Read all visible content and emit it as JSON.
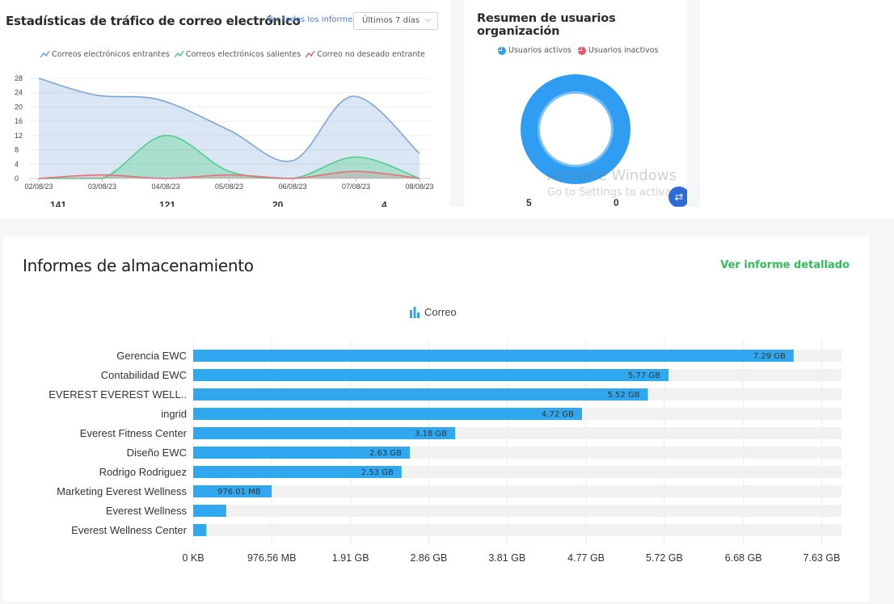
{
  "traffic": {
    "title": "Estadísticas de tráfico de correo electrónico",
    "view_all": "Ver todos los informes",
    "period": "Últimos 7 días",
    "legend": [
      {
        "label": "Correos electrónicos entrantes",
        "color": "#7aa7d8",
        "icon": "line-chart-icon"
      },
      {
        "label": "Correos electrónicos salientes",
        "color": "#4fd08a",
        "icon": "line-chart-icon"
      },
      {
        "label": "Correo no deseado entrante",
        "color": "#e5707e",
        "icon": "line-chart-icon"
      }
    ],
    "totals": [
      "141",
      "121",
      "20",
      "4"
    ]
  },
  "users": {
    "title": "Resumen de usuarios organización",
    "legend": [
      {
        "label": "Usuarios activos",
        "color": "#2f9df2",
        "icon": "pie-chart-icon"
      },
      {
        "label": "Usuarios inactivos",
        "color": "#e5556f",
        "icon": "pie-chart-icon"
      }
    ],
    "active_count": "5",
    "inactive_count": "0",
    "watermark_line1": "Activate Windows",
    "watermark_line2": "Go to Settings to activate Wi",
    "fab_icon": "settings-sliders-icon"
  },
  "storage": {
    "title": "Informes de almacenamiento",
    "detail_link": "Ver informe detallado",
    "legend_label": "Correo",
    "legend_icon": "bar-chart-icon"
  },
  "chart_data": [
    {
      "type": "area",
      "x": [
        "02/08/23",
        "03/08/23",
        "04/08/23",
        "05/08/23",
        "06/08/23",
        "07/08/23",
        "08/08/23"
      ],
      "yticks": [
        0,
        4,
        8,
        12,
        16,
        20,
        24,
        28
      ],
      "ylim": [
        0,
        28
      ],
      "grid": true,
      "legend_position": "top",
      "series": [
        {
          "name": "Correos electrónicos entrantes",
          "color": "#7aa7d8",
          "points": [
            [
              0,
              28
            ],
            [
              0.9,
              23.3
            ],
            [
              1.9,
              22
            ],
            [
              3,
              13.5
            ],
            [
              4,
              5
            ],
            [
              4.95,
              23
            ],
            [
              6,
              7
            ]
          ]
        },
        {
          "name": "Correos electrónicos salientes",
          "color": "#4fd08a",
          "points": [
            [
              0,
              0
            ],
            [
              1,
              0
            ],
            [
              2,
              12
            ],
            [
              3,
              2
            ],
            [
              4,
              0
            ],
            [
              5,
              6
            ],
            [
              6,
              0
            ]
          ]
        },
        {
          "name": "Correo no deseado entrante",
          "color": "#e5707e",
          "points": [
            [
              0,
              0
            ],
            [
              1,
              1
            ],
            [
              2,
              0
            ],
            [
              3,
              1
            ],
            [
              4,
              0
            ],
            [
              5,
              2
            ],
            [
              6,
              0
            ]
          ]
        }
      ]
    },
    {
      "type": "pie",
      "labels": [
        "Usuarios activos",
        "Usuarios inactivos"
      ],
      "values": [
        5,
        0
      ],
      "colors": [
        "#2f9df2",
        "#e5556f"
      ]
    },
    {
      "type": "bar",
      "orientation": "horizontal",
      "categories": [
        "Gerencia EWC",
        "Contabilidad EWC",
        "EVEREST EVEREST WELL..",
        "ingrid",
        "Everest Fitness Center",
        "Diseño EWC",
        "Rodrigo Rodriguez",
        "Marketing Everest Wellness",
        "Everest Wellness",
        "Everest Wellness Center"
      ],
      "values_gb": [
        7.29,
        5.77,
        5.52,
        4.72,
        3.18,
        2.63,
        2.53,
        0.953,
        0.4,
        0.16
      ],
      "value_labels": [
        "7.29 GB",
        "5.77 GB",
        "5.52 GB",
        "4.72 GB",
        "3.18 GB",
        "2.63 GB",
        "2.53 GB",
        "976.01 MB",
        "",
        ""
      ],
      "xticks": [
        "0 KB",
        "976.56 MB",
        "1.91 GB",
        "2.86 GB",
        "3.81 GB",
        "4.77 GB",
        "5.72 GB",
        "6.68 GB",
        "7.63 GB"
      ],
      "xlim_gb": [
        0,
        7.87
      ],
      "bar_color": "#2fa8f0",
      "track_color": "#f1f1f1",
      "series_name": "Correo"
    }
  ]
}
